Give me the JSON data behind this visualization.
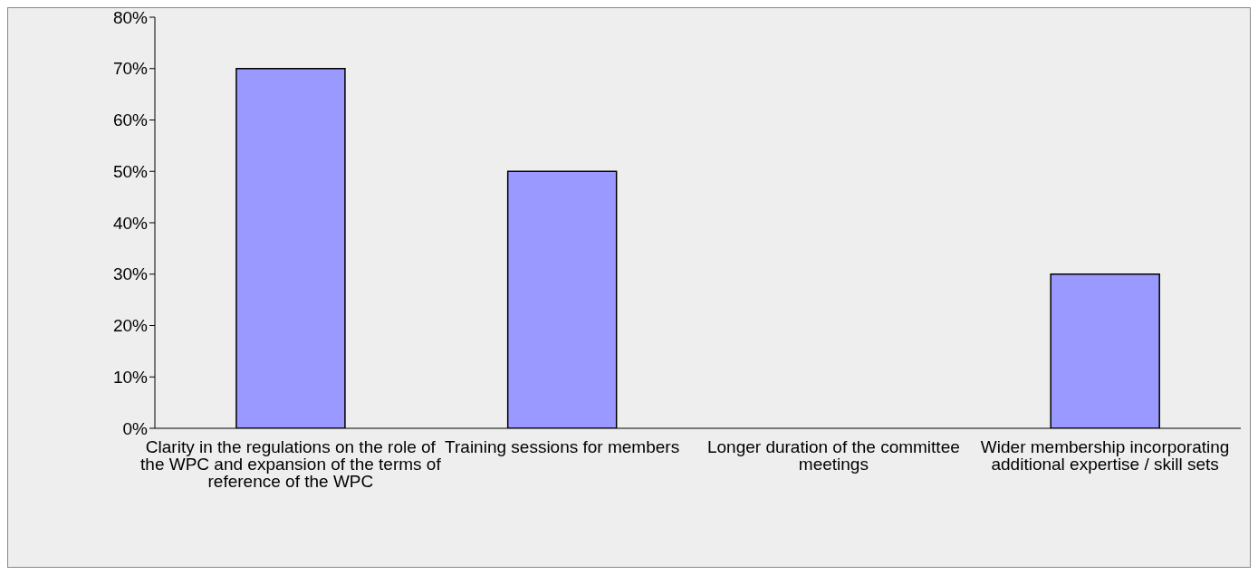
{
  "chart_data": {
    "type": "bar",
    "categories": [
      "Clarity in the regulations on the role of the WPC and expansion of the terms of reference of the WPC",
      "Training sessions for members",
      "Longer duration of the committee meetings",
      "Wider membership incorporating additional expertise / skill sets"
    ],
    "values": [
      70,
      50,
      0,
      30
    ],
    "color": "#9999ff",
    "ylim": [
      0,
      80
    ],
    "yticks": [
      {
        "value": 0,
        "label": "0%"
      },
      {
        "value": 10,
        "label": "10%"
      },
      {
        "value": 20,
        "label": "20%"
      },
      {
        "value": 30,
        "label": "30%"
      },
      {
        "value": 40,
        "label": "40%"
      },
      {
        "value": 50,
        "label": "50%"
      },
      {
        "value": 60,
        "label": "60%"
      },
      {
        "value": 70,
        "label": "70%"
      },
      {
        "value": 80,
        "label": "80%"
      }
    ],
    "grid": false,
    "legend": false
  }
}
